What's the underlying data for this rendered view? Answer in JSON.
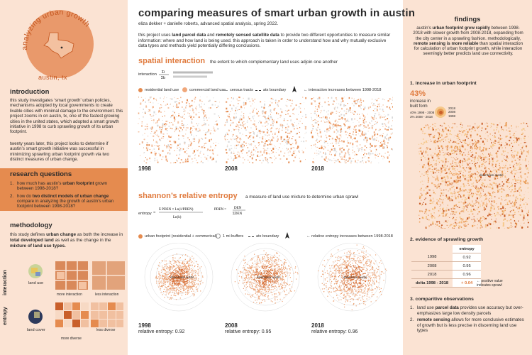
{
  "logo": {
    "ring_text": "analyzing urban growth",
    "place": "austin, tx"
  },
  "introduction": {
    "heading": "introduction",
    "p1": "this study investigates ‘smart growth’ urban policies, mechanisms adopted by local governments to create livable cities with minimal damage to the environment. this project zooms in on austin, tx, one of the fastest growing cities in the united states, which adopted a smart growth initiative in 1998 to curb sprawling growth of its urban footprint.",
    "p2": "twenty years later, this project looks to determine if austin’s smart growth initiative was successful in minimizing sprawling urban footprint growth via two distinct measures of urban change."
  },
  "research_questions": {
    "heading": "research questions",
    "q1_pre": "how much has austin’s ",
    "q1_bold": "urban footprint",
    "q1_post": " grown between 1998-2018?",
    "q2_pre": "how do ",
    "q2_bold": "two distinct models of urban change",
    "q2_post": " compare in analyzing the growth of austin’s urban footprint between 1998-2018?"
  },
  "methodology": {
    "heading": "methodology",
    "t1": "this study defines ",
    "b1": "urban change",
    "t2": " as both the increase in ",
    "b2": "total developed land",
    "t3": " as well as the change in the ",
    "b3": "mixture of land use types.",
    "row1_label": "interaction",
    "row1_icon_label": "land use",
    "row1_left": "more interaction",
    "row1_right": "less interaction",
    "row2_label": "entropy",
    "row2_icon_label": "land cover",
    "row2_left": "more diverse",
    "row2_right": "less diverse"
  },
  "header": {
    "title": "comparing measures of smart urban growth in austin",
    "authors": "eliza dekker + danielle roberts, advanced spatial analysis, spring 2022.",
    "intro_pre": "this project uses ",
    "intro_b1": "land parcel data",
    "intro_mid": " and ",
    "intro_b2": "remotely sensed satellite data",
    "intro_post": " to provide two different opportunities to measure similar information: where and how land is being used. this approach is taken in order to understand how and why mutually exclusive data types and methods yield potentially differing conclusions."
  },
  "spatial": {
    "title": "spatial interaction",
    "subtitle": "the extent to which complementary land uses adjoin one another",
    "formula_label": "interaction",
    "legend_res": "residential land use",
    "legend_com": "commercial land use",
    "legend_tracts": "census tracts",
    "legend_boundary": "atx boundary",
    "legend_note": "interaction increases between 1998-2018",
    "years": [
      "1998",
      "2008",
      "2018"
    ]
  },
  "entropy": {
    "title": "shannon’s relative entropy",
    "subtitle": "a measure of land use mixture to determine urban sprawl",
    "formula_label": "entropy",
    "legend_fp": "urban footprint (residential + commerical)",
    "legend_buffer": "1 mi buffers",
    "legend_boundary": "atx boundary",
    "legend_note": "relative entropy increases between 1998-2018",
    "map_label": "downtown austin",
    "years": [
      "1998",
      "2008",
      "2018"
    ],
    "values": [
      "relative entropy: 0.92",
      "relative entropy: 0.95",
      "relative entropy: 0.96"
    ]
  },
  "findings": {
    "heading": "findings",
    "p_pre": "austin’s ",
    "p_b1": "urban footprint grew rapidly",
    "p_mid1": " between 1998-2018 with slower growth from 2008-2018, expanding from the city center in a sprawling fashion. methodologically, ",
    "p_b2": "remote sensing is more reliable",
    "p_post": " than spatial interaction for calculation of urban footprint growth, while interaction seemingly better predicts land use connectivity."
  },
  "footprint": {
    "heading": "1. increase in urban footprint",
    "pct": "43%",
    "pct_label": "increase in built form",
    "stat1": "40% 1998 - 2008",
    "stat2": "3% 2008 - 2018",
    "legend": [
      "2018",
      "2008",
      "1998"
    ],
    "map_label": "downtown austin"
  },
  "sprawl": {
    "heading": "2. evidence of sprawling growth",
    "col_header": "entropy",
    "rows": [
      {
        "year": "1998",
        "value": "0.92"
      },
      {
        "year": "2008",
        "value": "0.95"
      },
      {
        "year": "2018",
        "value": "0.96"
      }
    ],
    "delta_label": "delta 1998 - 2018",
    "delta_value": "+ 0.04",
    "note": "positive value indicates sprawl"
  },
  "observations": {
    "heading": "3. comparitive observations",
    "o1_pre": "land use ",
    "o1_b": "parcel data",
    "o1_post": " provides use accuracy but over-emphasizes large low density parcels",
    "o2_b": "remote sensing",
    "o2_post": " allows for more conclusive estimates of growth but is less precise in discerning land use types"
  },
  "colors": {
    "accent": "#e07a3d",
    "panel": "#fbe3d3",
    "box": "#e58b4f",
    "dark": "#2b2b2b"
  }
}
